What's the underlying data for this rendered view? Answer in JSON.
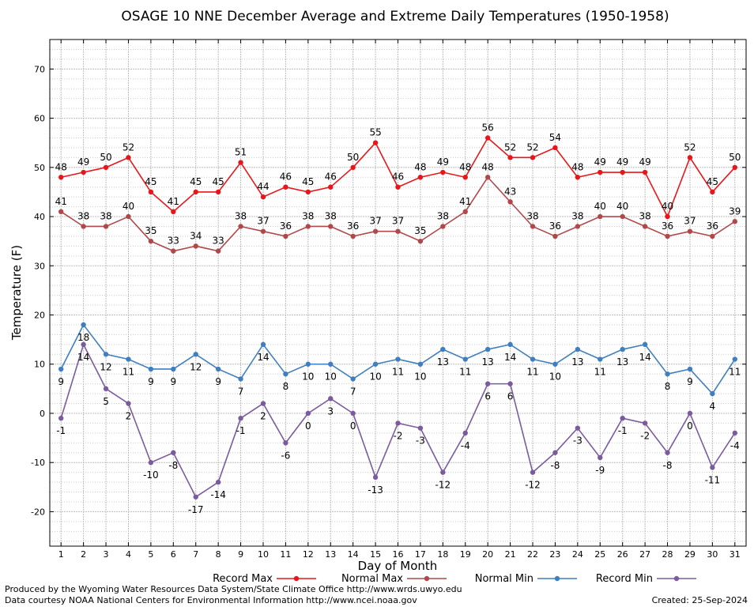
{
  "chart_data": {
    "type": "line",
    "title": "OSAGE 10 NNE December Average and Extreme Daily Temperatures (1950-1958)",
    "xlabel": "Day of Month",
    "ylabel": "Temperature (F)",
    "x": [
      1,
      2,
      3,
      4,
      5,
      6,
      7,
      8,
      9,
      10,
      11,
      12,
      13,
      14,
      15,
      16,
      17,
      18,
      19,
      20,
      21,
      22,
      23,
      24,
      25,
      26,
      27,
      28,
      29,
      30,
      31
    ],
    "y_ticks": [
      -20,
      -10,
      0,
      10,
      20,
      30,
      40,
      50,
      60,
      70
    ],
    "ylim": [
      -27,
      76
    ],
    "xlim": [
      0.5,
      31.5
    ],
    "grid": true,
    "legend_position": "bottom",
    "series": [
      {
        "name": "Record Max",
        "color": "#e8161b",
        "values": [
          48,
          49,
          50,
          52,
          45,
          41,
          45,
          45,
          51,
          44,
          46,
          45,
          46,
          50,
          55,
          46,
          48,
          49,
          48,
          56,
          52,
          52,
          54,
          48,
          49,
          49,
          49,
          40,
          52,
          45,
          50
        ]
      },
      {
        "name": "Normal Max",
        "color": "#b0484a",
        "values": [
          41,
          38,
          38,
          40,
          35,
          33,
          34,
          33,
          38,
          37,
          36,
          38,
          38,
          36,
          37,
          37,
          35,
          38,
          41,
          48,
          43,
          38,
          36,
          38,
          40,
          40,
          38,
          36,
          37,
          36,
          39
        ]
      },
      {
        "name": "Normal Min",
        "color": "#3f7fbf",
        "values": [
          9,
          18,
          12,
          11,
          9,
          9,
          12,
          9,
          7,
          14,
          8,
          10,
          10,
          7,
          10,
          11,
          10,
          13,
          11,
          13,
          14,
          11,
          10,
          13,
          11,
          13,
          14,
          8,
          9,
          4,
          11
        ]
      },
      {
        "name": "Record Min",
        "color": "#7b5b9e",
        "values": [
          -1,
          14,
          5,
          2,
          -10,
          -8,
          -17,
          -14,
          -1,
          2,
          -6,
          0,
          3,
          0,
          -13,
          -2,
          -3,
          -12,
          -4,
          6,
          6,
          -12,
          -8,
          -3,
          -9,
          -1,
          -2,
          -8,
          0,
          -11,
          -4
        ]
      }
    ]
  },
  "footer": {
    "line1": "Produced by the Wyoming Water Resources Data System/State Climate Office http://www.wrds.uwyo.edu",
    "line2": "Data courtesy NOAA National Centers for Environmental Information http://www.ncei.noaa.gov",
    "created": "Created:  25-Sep-2024"
  }
}
